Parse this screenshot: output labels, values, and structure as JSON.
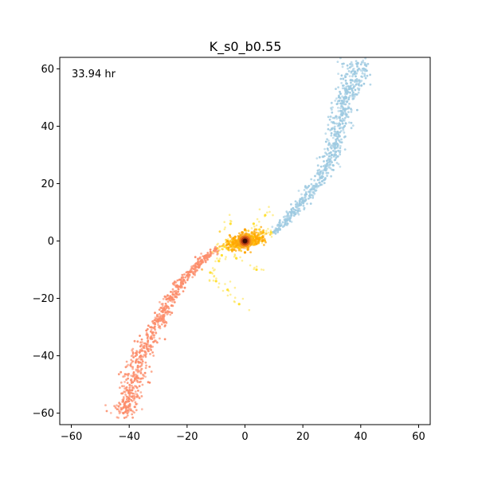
{
  "chart_data": {
    "type": "scatter",
    "title": "K_s0_b0.55",
    "annotation": "33.94 hr",
    "xlabel": "",
    "ylabel": "",
    "xlim": [
      -64,
      64
    ],
    "ylim": [
      -64,
      64
    ],
    "xticks": [
      -60,
      -40,
      -20,
      0,
      20,
      40,
      60
    ],
    "yticks": [
      -60,
      -40,
      -20,
      0,
      20,
      40,
      60
    ],
    "tick_labels": {
      "x": [
        "−60",
        "−40",
        "−20",
        "0",
        "20",
        "40",
        "60"
      ],
      "y": [
        "−60",
        "−40",
        "−20",
        "0",
        "20",
        "40",
        "60"
      ]
    },
    "grid": false,
    "series": [
      {
        "role": "upper-right tidal arm",
        "color": "#9ecae1",
        "points": [
          [
            10,
            3
          ],
          [
            14,
            7
          ],
          [
            17,
            10
          ],
          [
            20,
            14
          ],
          [
            23,
            18
          ],
          [
            26,
            22
          ],
          [
            28,
            26
          ],
          [
            30,
            30
          ],
          [
            31,
            34
          ],
          [
            32,
            38
          ],
          [
            33,
            42
          ],
          [
            34,
            46
          ],
          [
            35,
            50
          ],
          [
            36,
            53
          ],
          [
            37,
            56
          ],
          [
            38,
            59
          ],
          [
            39,
            62
          ]
        ]
      },
      {
        "role": "lower-left tidal arm",
        "color": "#fc8d6b",
        "points": [
          [
            -10,
            -3
          ],
          [
            -14,
            -6
          ],
          [
            -17,
            -9
          ],
          [
            -20,
            -12
          ],
          [
            -23,
            -16
          ],
          [
            -26,
            -20
          ],
          [
            -28,
            -24
          ],
          [
            -30,
            -28
          ],
          [
            -32,
            -32
          ],
          [
            -34,
            -36
          ],
          [
            -36,
            -40
          ],
          [
            -37,
            -44
          ],
          [
            -38,
            -48
          ],
          [
            -39,
            -52
          ],
          [
            -40,
            -55
          ],
          [
            -41,
            -58
          ],
          [
            -42,
            -60
          ]
        ]
      },
      {
        "role": "central core",
        "color": "#ffa500",
        "points": [
          [
            0,
            0
          ],
          [
            -2,
            1
          ],
          [
            2,
            -1
          ],
          [
            -4,
            1
          ],
          [
            4,
            -1
          ],
          [
            -1,
            3
          ],
          [
            1,
            -3
          ],
          [
            -6,
            0
          ],
          [
            6,
            0
          ],
          [
            0,
            4
          ],
          [
            0,
            -4
          ]
        ]
      },
      {
        "role": "scattered halo",
        "color": "#ffe033",
        "points": [
          [
            -7,
            -2
          ],
          [
            -8,
            -5
          ],
          [
            -5,
            6
          ],
          [
            -3,
            -6
          ],
          [
            3,
            6
          ],
          [
            5,
            4
          ],
          [
            -9,
            -7
          ],
          [
            -12,
            -11
          ],
          [
            -10,
            -14
          ],
          [
            7,
            9
          ],
          [
            -6,
            -17
          ],
          [
            -2,
            -22
          ],
          [
            4,
            -10
          ],
          [
            9,
            3
          ]
        ]
      }
    ]
  }
}
